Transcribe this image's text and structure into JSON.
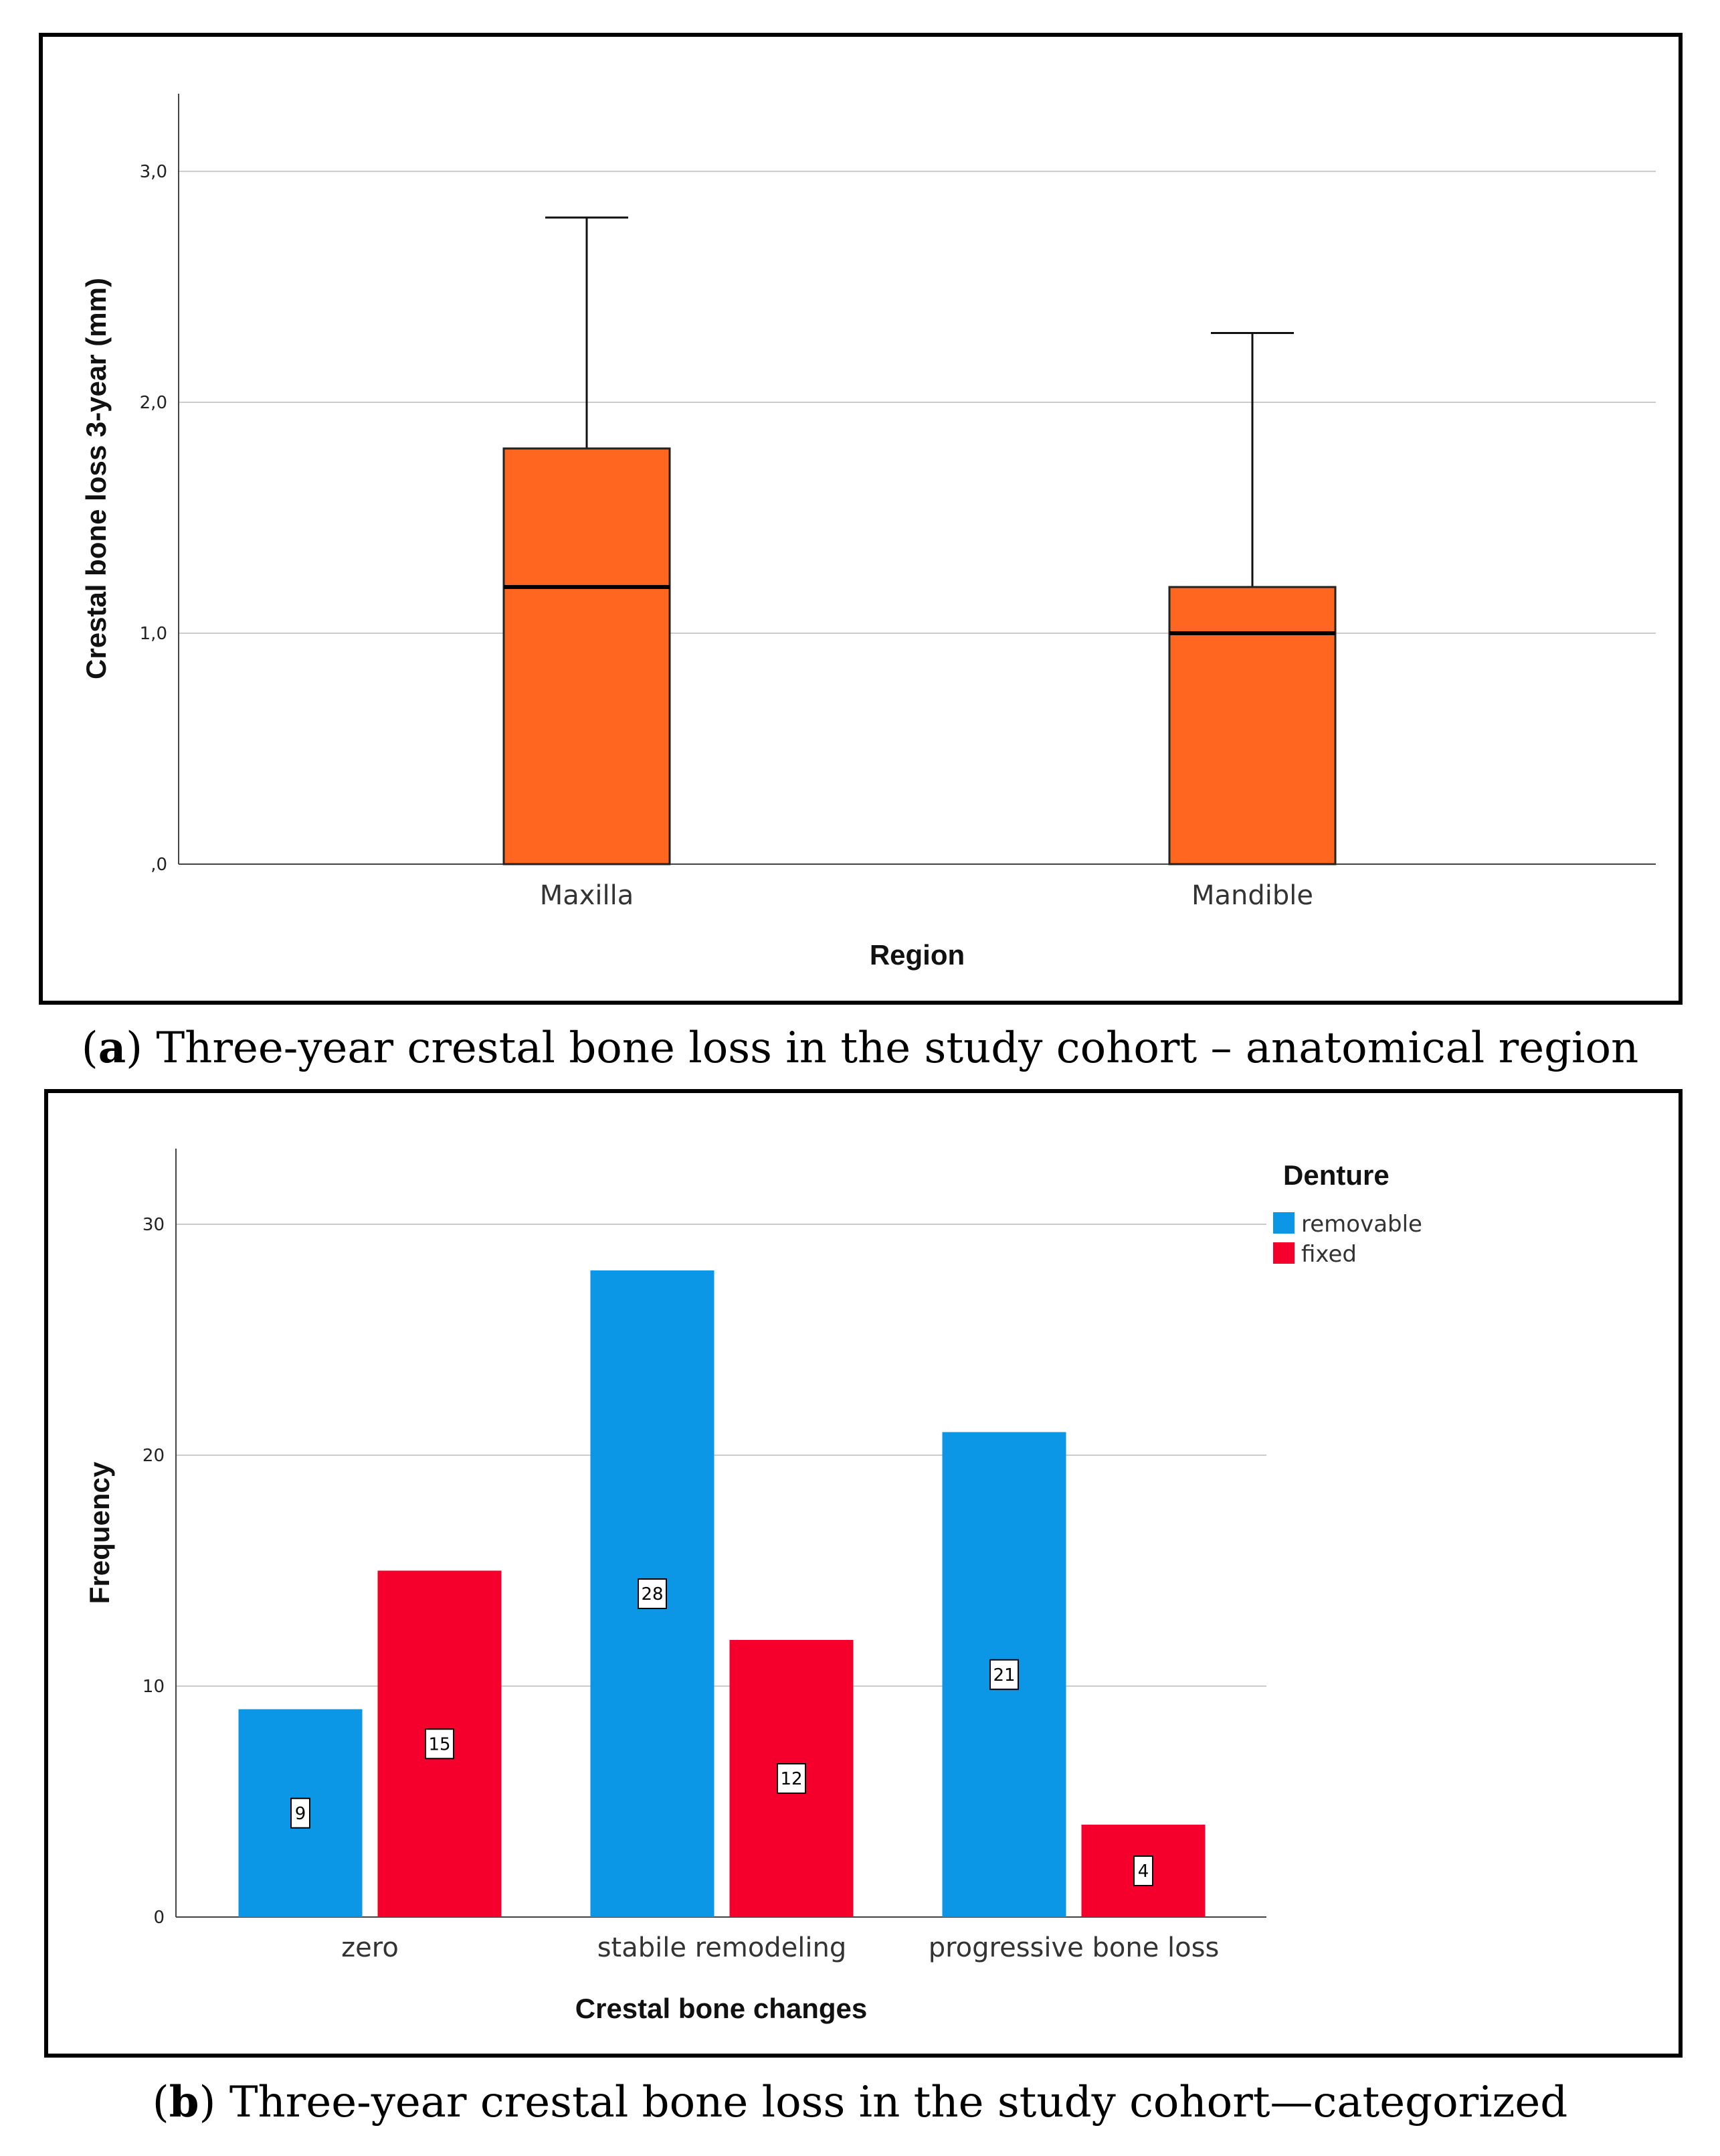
{
  "chart_data": [
    {
      "type": "box",
      "panel_label": "a",
      "caption": "Three-year crestal bone loss in the study cohort – anatomical region",
      "xlabel": "Region",
      "ylabel": "Crestal bone loss 3-year (mm)",
      "ylim": [
        0,
        3.3
      ],
      "yticks": [
        0,
        1,
        2,
        3
      ],
      "ytick_labels": [
        ",0",
        "1,0",
        "2,0",
        "3,0"
      ],
      "grid": true,
      "color": "#FF6620",
      "categories": [
        "Maxilla",
        "Mandible"
      ],
      "boxes": [
        {
          "name": "Maxilla",
          "min": 0,
          "q1": 0,
          "median": 1.2,
          "q3": 1.8,
          "max": 2.8
        },
        {
          "name": "Mandible",
          "min": 0,
          "q1": 0,
          "median": 1.0,
          "q3": 1.2,
          "max": 2.3
        }
      ]
    },
    {
      "type": "bar",
      "panel_label": "b",
      "caption": "Three-year crestal bone loss in the study cohort—categorized",
      "xlabel": "Crestal bone changes",
      "ylabel": "Frequency",
      "ylim": [
        0,
        33.5
      ],
      "yticks": [
        0,
        10,
        20,
        30
      ],
      "ytick_labels": [
        "0",
        "10",
        "20",
        "30"
      ],
      "grid": true,
      "legend_title": "Denture",
      "legend_position": "top-right",
      "categories": [
        "zero",
        "stabile remodeling",
        "progressive bone loss"
      ],
      "series": [
        {
          "name": "removable",
          "color": "#0B96E6",
          "values": [
            9,
            28,
            21
          ]
        },
        {
          "name": "fixed",
          "color": "#F5002D",
          "values": [
            15,
            12,
            4
          ]
        }
      ]
    }
  ]
}
